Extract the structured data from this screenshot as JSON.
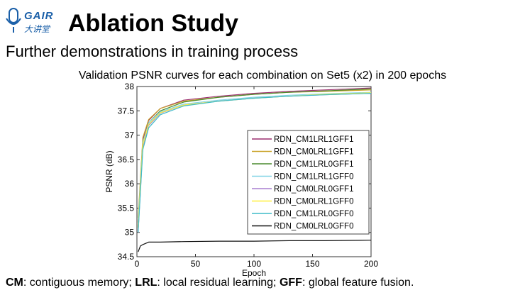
{
  "slide": {
    "logo_text": "GAIR",
    "logo_subtext": "大讲堂",
    "title": "Ablation Study",
    "subtitle": "Further demonstrations in training process",
    "footer": {
      "cm_abbr": "CM",
      "cm_desc": ": contiguous memory; ",
      "lrl_abbr": "LRL",
      "lrl_desc": ": local residual learning; ",
      "gff_abbr": "GFF",
      "gff_desc": ": global feature fusion."
    }
  },
  "chart_data": {
    "type": "line",
    "title": "Validation PSNR curves for each combination on Set5 (x2) in 200 epochs",
    "xlabel": "Epoch",
    "ylabel": "PSNR (dB)",
    "xlim": [
      0,
      200
    ],
    "ylim": [
      34.5,
      38
    ],
    "xticks": [
      0,
      50,
      100,
      150,
      200
    ],
    "yticks": [
      34.5,
      35,
      35.5,
      36,
      36.5,
      37,
      37.5,
      38
    ],
    "legend_position": "right-middle",
    "grid": false,
    "series": [
      {
        "name": "RDN_CM1LRL1GFF1",
        "color": "#9b2f6e",
        "x": [
          1,
          5,
          10,
          20,
          40,
          70,
          100,
          130,
          160,
          200
        ],
        "y": [
          35.2,
          36.9,
          37.3,
          37.55,
          37.72,
          37.8,
          37.86,
          37.9,
          37.93,
          37.97
        ]
      },
      {
        "name": "RDN_CM0LRL1GFF1",
        "color": "#c9a227",
        "x": [
          1,
          5,
          10,
          20,
          40,
          70,
          100,
          130,
          160,
          200
        ],
        "y": [
          35.3,
          36.95,
          37.32,
          37.55,
          37.7,
          37.78,
          37.84,
          37.88,
          37.9,
          37.93
        ]
      },
      {
        "name": "RDN_CM1LRL0GFF1",
        "color": "#4a8a2e",
        "x": [
          1,
          5,
          10,
          20,
          40,
          70,
          100,
          130,
          160,
          200
        ],
        "y": [
          35.1,
          36.8,
          37.25,
          37.5,
          37.68,
          37.78,
          37.84,
          37.88,
          37.91,
          37.95
        ]
      },
      {
        "name": "RDN_CM1LRL1GFF0",
        "color": "#7fd3e6",
        "x": [
          1,
          5,
          10,
          20,
          40,
          70,
          100,
          130,
          160,
          200
        ],
        "y": [
          35.2,
          36.85,
          37.25,
          37.48,
          37.64,
          37.72,
          37.78,
          37.82,
          37.85,
          37.88
        ]
      },
      {
        "name": "RDN_CM0LRL0GFF1",
        "color": "#a87fd0",
        "x": [
          1,
          5,
          10,
          20,
          40,
          70,
          100,
          130,
          160,
          200
        ],
        "y": [
          35.0,
          36.75,
          37.2,
          37.45,
          37.62,
          37.7,
          37.76,
          37.8,
          37.83,
          37.86
        ]
      },
      {
        "name": "RDN_CM0LRL1GFF0",
        "color": "#ffef3a",
        "x": [
          1,
          5,
          10,
          20,
          40,
          70,
          100,
          130,
          160,
          200
        ],
        "y": [
          35.1,
          36.8,
          37.22,
          37.46,
          37.62,
          37.7,
          37.76,
          37.8,
          37.84,
          37.87
        ]
      },
      {
        "name": "RDN_CM1LRL0GFF0",
        "color": "#3fbcc8",
        "x": [
          1,
          5,
          10,
          20,
          40,
          70,
          100,
          130,
          160,
          200
        ],
        "y": [
          35.0,
          36.7,
          37.15,
          37.42,
          37.6,
          37.7,
          37.76,
          37.8,
          37.83,
          37.86
        ]
      },
      {
        "name": "RDN_CM0LRL0GFF0",
        "color": "#111111",
        "x": [
          1,
          3,
          5,
          10,
          20,
          40,
          70,
          100,
          130,
          160,
          200
        ],
        "y": [
          34.6,
          34.72,
          34.75,
          34.8,
          34.8,
          34.81,
          34.82,
          34.82,
          34.83,
          34.83,
          34.84
        ]
      }
    ]
  }
}
